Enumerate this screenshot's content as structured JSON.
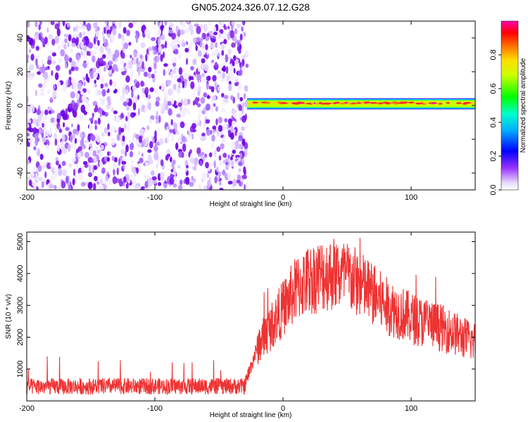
{
  "title": "GN05.2024.326.07.12.G28",
  "chart_data": [
    {
      "type": "heatmap",
      "xlabel": "Height of straight line (km)",
      "ylabel": "Frequency (Hz)",
      "xlim": [
        -200,
        150
      ],
      "ylim": [
        -50,
        50
      ],
      "xticks": [
        -200,
        -100,
        0,
        100
      ],
      "yticks": [
        -40,
        -20,
        0,
        20,
        40
      ],
      "colorbar": {
        "label": "Normalized spectral amplitude",
        "range": [
          0,
          1
        ],
        "ticks": [
          0.0,
          0.2,
          0.4,
          0.6,
          0.8
        ],
        "tick_labels": [
          "0.0",
          "0.2",
          "0.4",
          "0.6",
          "0.8"
        ],
        "colormap": "rainbow (white → violet → blue → cyan → green → yellow → orange → red → magenta)"
      },
      "regions": [
        {
          "x_range": [
            -200,
            -28
          ],
          "y_range": [
            -50,
            50
          ],
          "description": "broadband noise",
          "amplitude": [
            0.0,
            0.2
          ]
        },
        {
          "x_range": [
            -28,
            150
          ],
          "y_range": [
            -2,
            4
          ],
          "description": "narrow signal band near 0–2 Hz",
          "amplitude": [
            0.3,
            1.0
          ]
        }
      ]
    },
    {
      "type": "line",
      "xlabel": "Height of straight line (km)",
      "ylabel": "SNR (10 * v/v)",
      "xlim": [
        -200,
        150
      ],
      "ylim": [
        0,
        5300
      ],
      "xticks": [
        -200,
        -100,
        0,
        100
      ],
      "yticks": [
        1000,
        2000,
        3000,
        4000,
        5000
      ],
      "color": "#ee3333",
      "series": [
        {
          "x": [
            -200,
            -180,
            -160,
            -140,
            -120,
            -100,
            -80,
            -60,
            -40,
            -30,
            -20,
            -10,
            0,
            10,
            20,
            30,
            40,
            50,
            60,
            70,
            80,
            90,
            100,
            110,
            120,
            130,
            140,
            150
          ],
          "y": [
            450,
            450,
            450,
            460,
            460,
            460,
            460,
            460,
            460,
            460,
            1700,
            2300,
            2900,
            3500,
            3800,
            3950,
            4000,
            3900,
            3650,
            3350,
            3000,
            2800,
            2600,
            2450,
            2350,
            2200,
            2000,
            1850
          ]
        }
      ]
    }
  ]
}
